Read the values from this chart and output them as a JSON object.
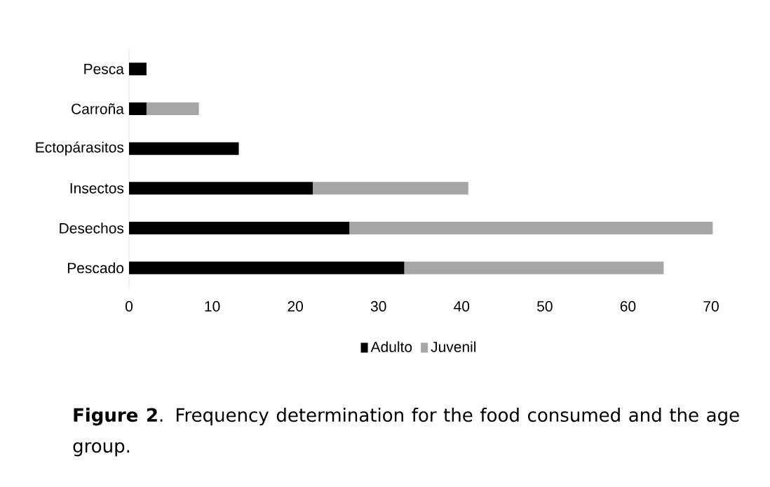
{
  "chart_data": {
    "type": "bar",
    "orientation": "horizontal",
    "stacked": true,
    "categories": [
      "Pesca",
      "Carroña",
      "Ectopárasitos",
      "Insectos",
      "Desechos",
      "Pescado"
    ],
    "series": [
      {
        "name": "Adulto",
        "color": "#000000",
        "values": [
          2.1,
          2.1,
          13.2,
          22.1,
          26.5,
          33.1
        ]
      },
      {
        "name": "Juvenil",
        "color": "#a6a6a6",
        "values": [
          0,
          6.3,
          0,
          18.7,
          43.7,
          31.2
        ]
      }
    ],
    "xlim": [
      0,
      70
    ],
    "xticks": [
      0,
      10,
      20,
      30,
      40,
      50,
      60,
      70
    ],
    "legend": "bottom",
    "annotations": [
      "**Figure 2**. Frequency determination for the food consumed and the age group."
    ]
  }
}
